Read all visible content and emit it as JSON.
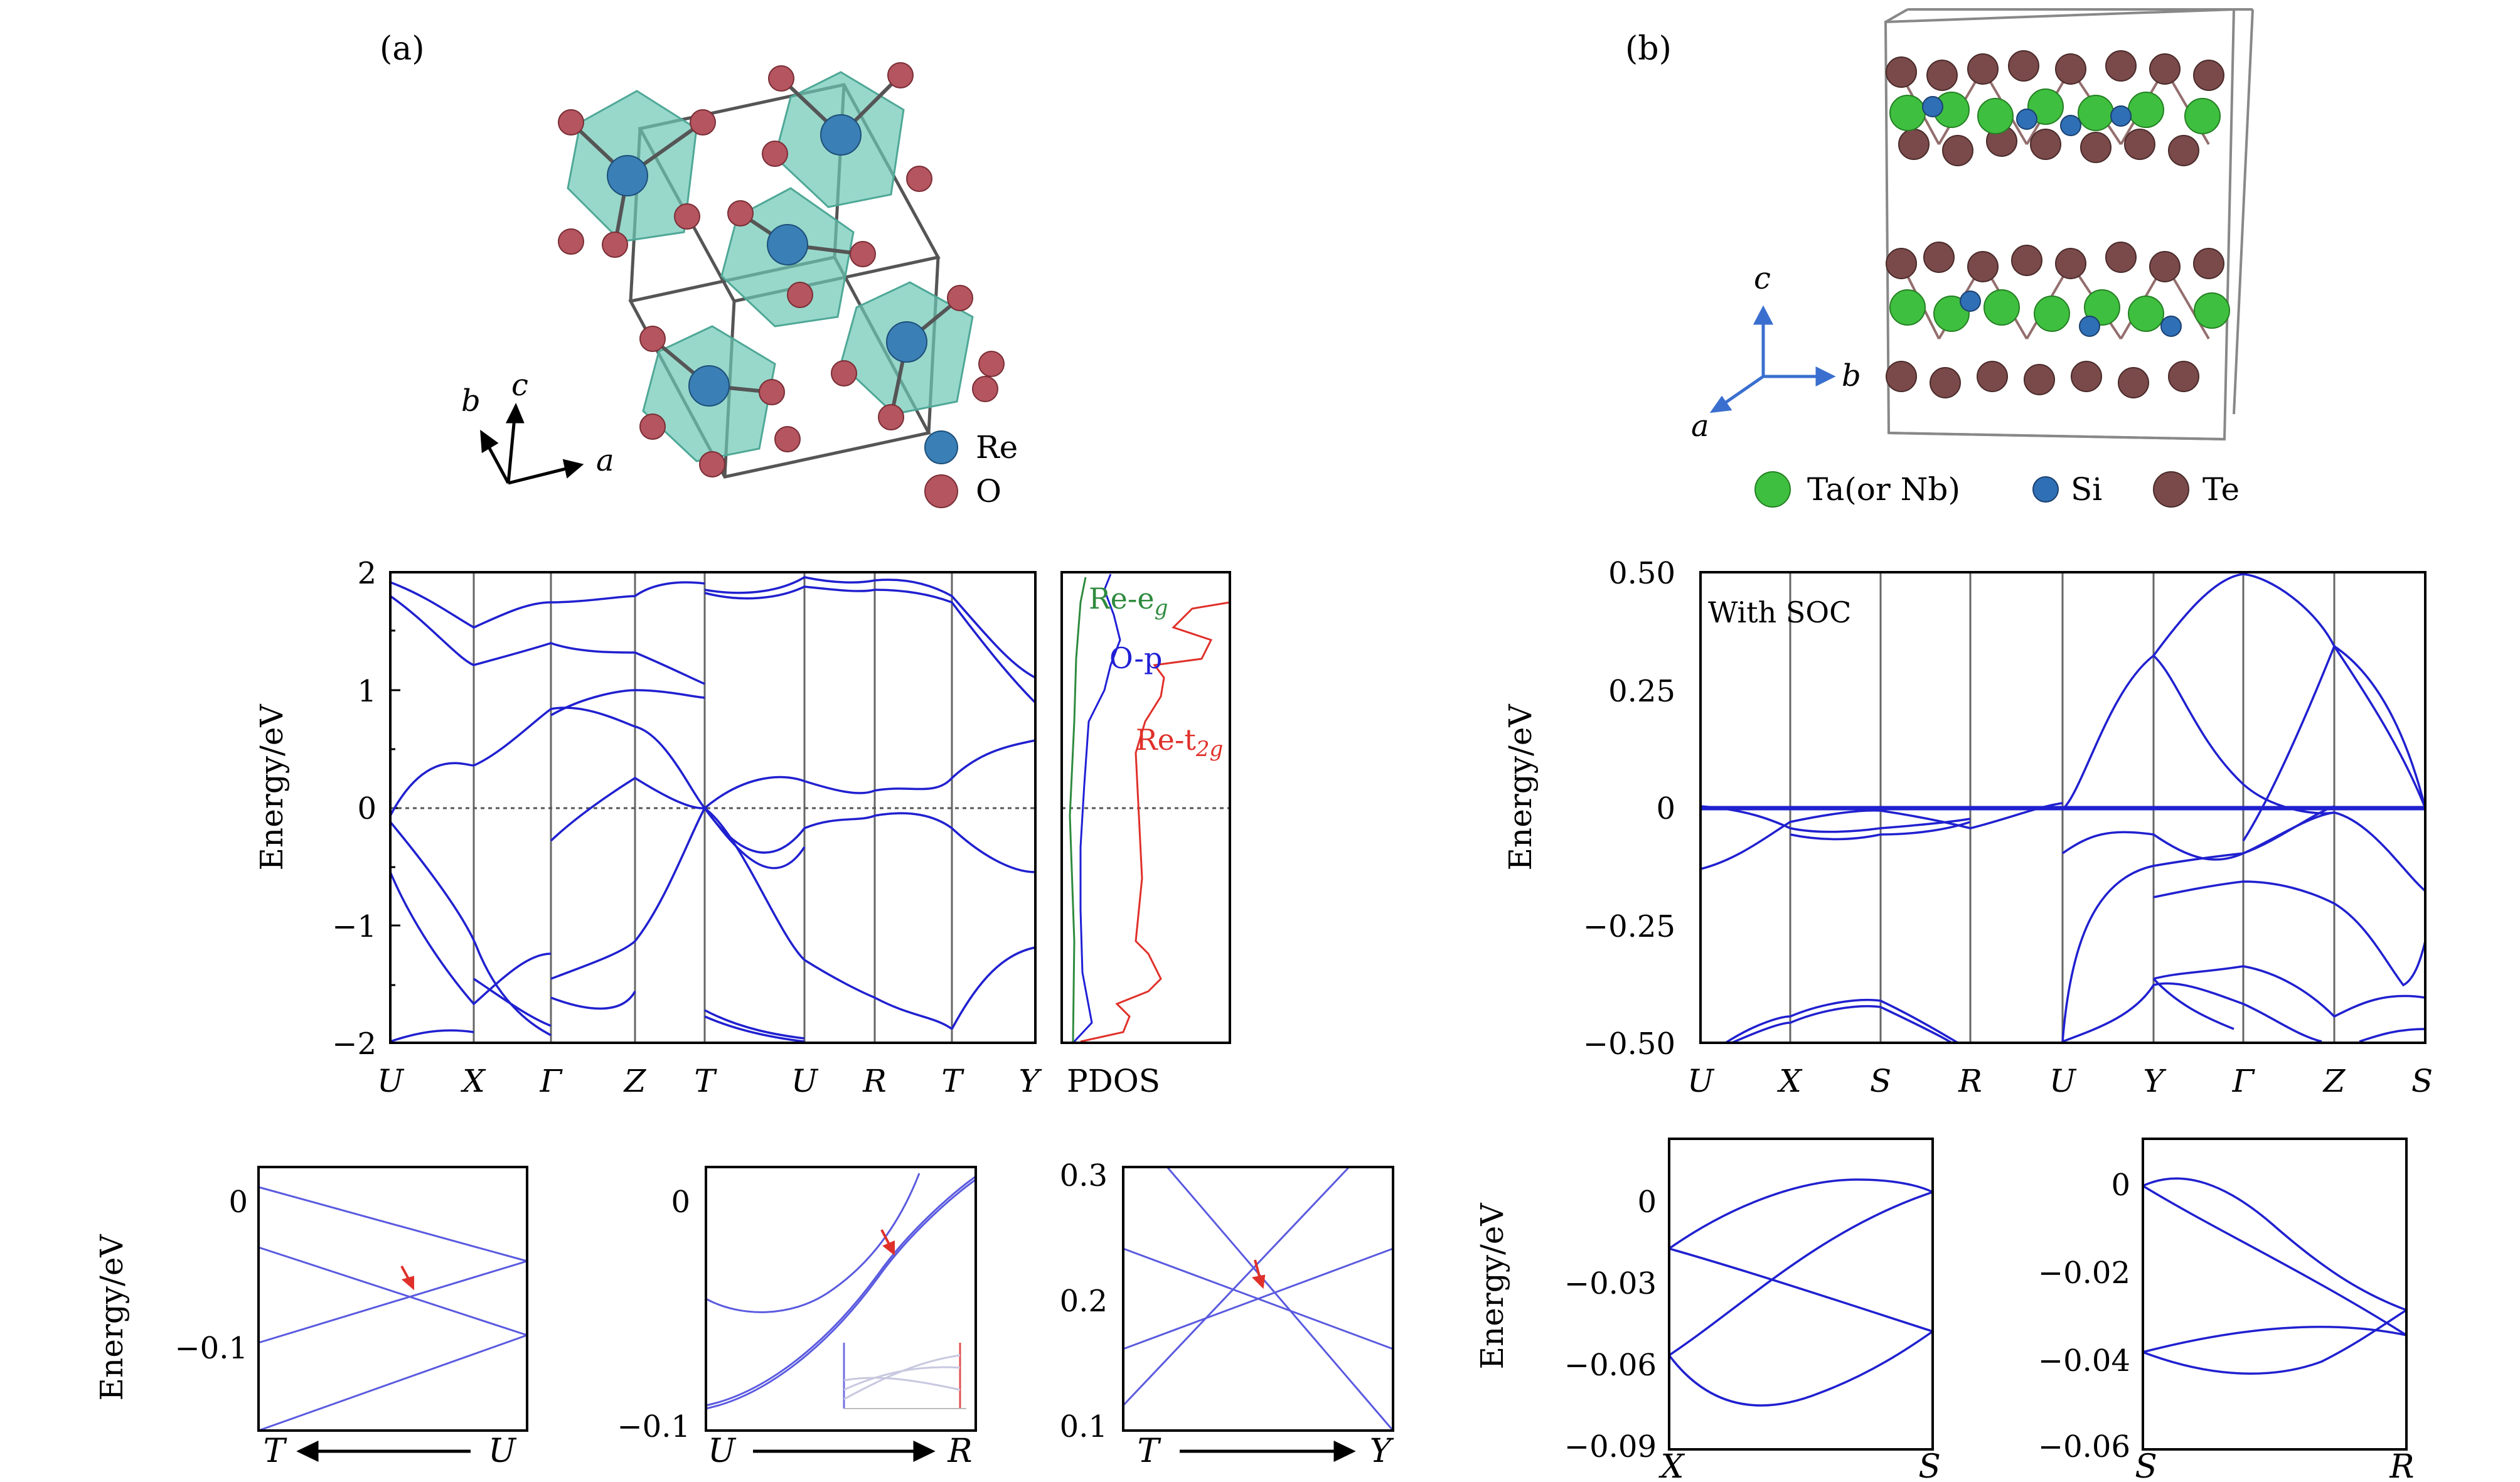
{
  "panel_labels": {
    "a": "(a)",
    "b": "(b)"
  },
  "structure_a": {
    "axes": {
      "a": "a",
      "b": "b",
      "c": "c"
    },
    "legend": [
      {
        "label": "Re",
        "color": "#3a7fb5"
      },
      {
        "label": "O",
        "color": "#b5555f"
      }
    ],
    "polyhedra_color": "#6cc7b5"
  },
  "structure_b": {
    "axes": {
      "a": "a",
      "b": "b",
      "c": "c"
    },
    "legend": [
      {
        "label": "Ta(or Nb)",
        "color": "#3fbf3f"
      },
      {
        "label": "Si",
        "color": "#2f6fb5"
      },
      {
        "label": "Te",
        "color": "#7a4a4a"
      }
    ]
  },
  "band_a": {
    "ylabel": "Energy/eV",
    "yticks": [
      "2",
      "1",
      "0",
      "−1",
      "−2"
    ],
    "kpoints": [
      "U",
      "X",
      "Γ",
      "Z",
      "T",
      "U",
      "R",
      "T",
      "Y"
    ],
    "pdos_label": "PDOS",
    "pdos_curves": [
      {
        "label": "Re-e",
        "sub": "g",
        "color": "#2e8b3e"
      },
      {
        "label": "O-p",
        "sub": "",
        "color": "#1f1fd6"
      },
      {
        "label": "Re-t",
        "sub": "2g",
        "color": "#e0302a"
      }
    ]
  },
  "band_b": {
    "ylabel": "Energy/eV",
    "yticks": [
      "0.50",
      "0.25",
      "0",
      "−0.25",
      "−0.50"
    ],
    "kpoints": [
      "U",
      "X",
      "S",
      "R",
      "U",
      "Y",
      "Γ",
      "Z",
      "S"
    ],
    "annotation": "With SOC"
  },
  "zooms": [
    {
      "ylabel": "Energy/eV",
      "yticks": [
        "0",
        "−0.1"
      ],
      "from": "T",
      "to": "U",
      "arrow": true
    },
    {
      "ylabel": "",
      "yticks": [
        "0",
        "−0.1"
      ],
      "from": "U",
      "to": "R",
      "arrow": true
    },
    {
      "ylabel": "",
      "yticks": [
        "0.3",
        "0.2",
        "0.1"
      ],
      "from": "T",
      "to": "Y",
      "arrow": true
    },
    {
      "ylabel": "Energy/eV",
      "yticks": [
        "0",
        "−0.03",
        "−0.06",
        "−0.09"
      ],
      "from": "X",
      "to": "S",
      "arrow": false
    },
    {
      "ylabel": "",
      "yticks": [
        "0",
        "−0.02",
        "−0.04",
        "−0.06"
      ],
      "from": "S",
      "to": "R",
      "arrow": false
    }
  ]
}
